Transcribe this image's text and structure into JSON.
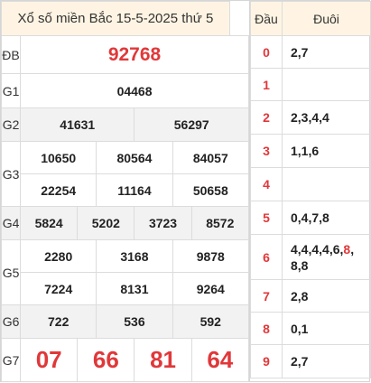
{
  "title": "Xổ số miền Bắc 15-5-2025 thứ 5",
  "prizes": {
    "db": {
      "label": "ĐB",
      "numbers": [
        "92768"
      ]
    },
    "g1": {
      "label": "G1",
      "numbers": [
        "04468"
      ]
    },
    "g2": {
      "label": "G2",
      "numbers": [
        "41631",
        "56297"
      ]
    },
    "g3": {
      "label": "G3",
      "numbers": [
        "10650",
        "80564",
        "84057",
        "22254",
        "11164",
        "50658"
      ]
    },
    "g4": {
      "label": "G4",
      "numbers": [
        "5824",
        "5202",
        "3723",
        "8572"
      ]
    },
    "g5": {
      "label": "G5",
      "numbers": [
        "2280",
        "3168",
        "9878",
        "7224",
        "8131",
        "9264"
      ]
    },
    "g6": {
      "label": "G6",
      "numbers": [
        "722",
        "536",
        "592"
      ]
    },
    "g7": {
      "label": "G7",
      "numbers": [
        "07",
        "66",
        "81",
        "64"
      ]
    }
  },
  "loto": {
    "head_label": "Đầu",
    "tail_label": "Đuôi",
    "rows": [
      {
        "dau": "0",
        "duoi": "2,7"
      },
      {
        "dau": "1",
        "duoi": ""
      },
      {
        "dau": "2",
        "duoi": "2,3,4,4"
      },
      {
        "dau": "3",
        "duoi": "1,1,6"
      },
      {
        "dau": "4",
        "duoi": ""
      },
      {
        "dau": "5",
        "duoi": "0,4,7,8"
      },
      {
        "dau": "6",
        "duoi_pre": "4,4,4,4,6,",
        "duoi_hi": "8",
        "duoi_post": ",",
        "duoi_line2": "8,8"
      },
      {
        "dau": "7",
        "duoi": "2,8"
      },
      {
        "dau": "8",
        "duoi": "0,1"
      },
      {
        "dau": "9",
        "duoi": "2,7"
      }
    ]
  },
  "colors": {
    "accent": "#e0383a",
    "header_bg": "#fff4e3",
    "shade_bg": "#f2f2f2"
  }
}
